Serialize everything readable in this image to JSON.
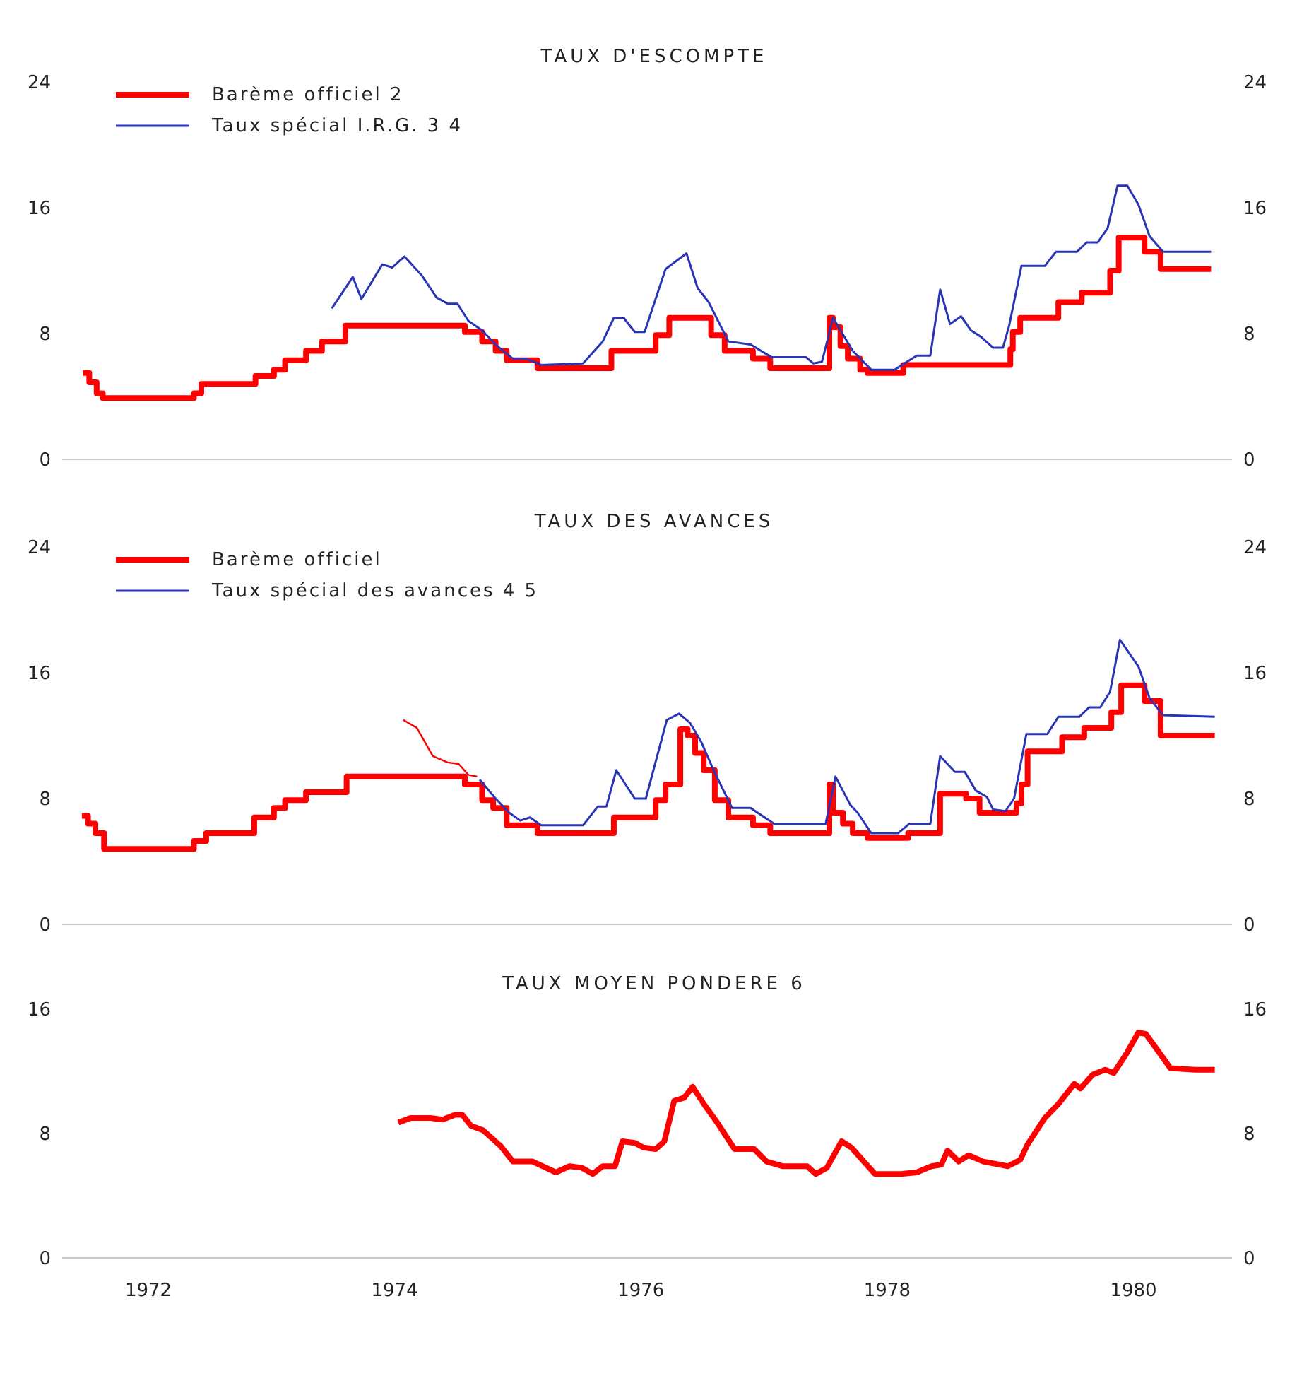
{
  "chart_data": [
    {
      "type": "step",
      "title": "TAUX D'ESCOMPTE",
      "xlim": [
        1971.3,
        1980.8
      ],
      "xticks": [
        1972,
        1974,
        1976,
        1978,
        1980
      ],
      "ylim": [
        0,
        24
      ],
      "yticks": [
        0,
        8,
        16,
        24
      ],
      "y2lim": [
        0,
        24
      ],
      "y2ticks": [
        0,
        8,
        16,
        24
      ],
      "tick_labels": "y",
      "legend": "top left",
      "series": [
        {
          "name": "Barème officiel 2",
          "color": "#ff0000",
          "x": [
            1971.47,
            1971.52,
            1971.58,
            1971.63,
            1972.37,
            1972.43,
            1972.87,
            1973.02,
            1973.11,
            1973.28,
            1973.41,
            1973.6,
            1974.57,
            1974.71,
            1974.82,
            1974.91,
            1975.16,
            1975.76,
            1976.12,
            1976.23,
            1976.57,
            1976.68,
            1976.91,
            1977.05,
            1977.53,
            1977.56,
            1977.62,
            1977.68,
            1977.78,
            1977.84,
            1978.13,
            1979.0,
            1979.02,
            1979.08,
            1979.39,
            1979.58,
            1979.81,
            1979.88,
            1980.09,
            1980.22,
            1980.63
          ],
          "values": [
            5.5,
            4.9,
            4.2,
            3.9,
            4.2,
            4.8,
            5.3,
            5.7,
            6.3,
            6.9,
            7.5,
            8.5,
            8.1,
            7.5,
            6.9,
            6.3,
            5.8,
            6.9,
            7.9,
            9.0,
            7.9,
            6.9,
            6.4,
            5.8,
            9.0,
            8.4,
            7.2,
            6.4,
            5.7,
            5.5,
            6.0,
            7.0,
            8.1,
            9.0,
            10.0,
            10.6,
            12.0,
            14.1,
            13.2,
            12.1,
            12.1
          ]
        },
        {
          "name": "Taux spécial I.R.G. 3 4",
          "type": "line",
          "color": "#2a35b5",
          "x": [
            1973.49,
            1973.66,
            1973.73,
            1973.9,
            1973.98,
            1974.08,
            1974.22,
            1974.34,
            1974.43,
            1974.51,
            1974.6,
            1974.71,
            1974.82,
            1974.96,
            1975.07,
            1975.19,
            1975.53,
            1975.69,
            1975.78,
            1975.86,
            1975.95,
            1976.03,
            1976.2,
            1976.37,
            1976.46,
            1976.55,
            1976.71,
            1976.89,
            1977.06,
            1977.34,
            1977.4,
            1977.47,
            1977.56,
            1977.72,
            1977.87,
            1978.06,
            1978.24,
            1978.35,
            1978.43,
            1978.51,
            1978.6,
            1978.68,
            1978.76,
            1978.86,
            1978.94,
            1978.99,
            1979.09,
            1979.28,
            1979.37,
            1979.54,
            1979.62,
            1979.71,
            1979.79,
            1979.87,
            1979.95,
            1980.04,
            1980.13,
            1980.24,
            1980.63
          ],
          "values": [
            9.6,
            11.6,
            10.2,
            12.4,
            12.2,
            12.9,
            11.7,
            10.3,
            9.9,
            9.9,
            8.8,
            8.2,
            7.3,
            6.4,
            6.4,
            6.0,
            6.1,
            7.5,
            9.0,
            9.0,
            8.1,
            8.1,
            12.1,
            13.1,
            10.9,
            10.0,
            7.5,
            7.3,
            6.5,
            6.5,
            6.1,
            6.2,
            9.0,
            6.9,
            5.7,
            5.7,
            6.6,
            6.6,
            10.8,
            8.6,
            9.1,
            8.2,
            7.8,
            7.1,
            7.1,
            8.5,
            12.3,
            12.3,
            13.2,
            13.2,
            13.8,
            13.8,
            14.7,
            17.4,
            17.4,
            16.2,
            14.2,
            13.2,
            13.2
          ]
        }
      ]
    },
    {
      "type": "step",
      "title": "TAUX DES AVANCES",
      "xlim": [
        1971.3,
        1980.8
      ],
      "xticks": [
        1972,
        1974,
        1976,
        1978,
        1980
      ],
      "ylim": [
        0,
        24
      ],
      "yticks": [
        0,
        8,
        16,
        24
      ],
      "y2lim": [
        0,
        24
      ],
      "y2ticks": [
        0,
        8,
        16,
        24
      ],
      "tick_labels": "y",
      "legend": "top left",
      "series": [
        {
          "name": "Barème officiel",
          "color": "#ff0000",
          "x": [
            1971.46,
            1971.51,
            1971.57,
            1971.64,
            1972.37,
            1972.47,
            1972.86,
            1973.02,
            1973.11,
            1973.28,
            1973.61,
            1974.57,
            1974.71,
            1974.8,
            1974.91,
            1975.16,
            1975.78,
            1976.12,
            1976.2,
            1976.32,
            1976.38,
            1976.44,
            1976.51,
            1976.6,
            1976.71,
            1976.91,
            1977.05,
            1977.53,
            1977.56,
            1977.64,
            1977.72,
            1977.84,
            1978.17,
            1978.43,
            1978.64,
            1978.75,
            1979.05,
            1979.09,
            1979.14,
            1979.42,
            1979.6,
            1979.82,
            1979.9,
            1980.09,
            1980.22,
            1980.66
          ],
          "values": [
            6.9,
            6.4,
            5.8,
            4.8,
            5.3,
            5.8,
            6.8,
            7.4,
            7.9,
            8.4,
            9.4,
            8.9,
            7.9,
            7.4,
            6.3,
            5.8,
            6.8,
            7.9,
            8.9,
            12.4,
            12.0,
            10.9,
            9.8,
            7.9,
            6.8,
            6.3,
            5.8,
            8.9,
            7.1,
            6.4,
            5.8,
            5.5,
            5.8,
            8.3,
            8.0,
            7.1,
            7.7,
            8.9,
            11.0,
            11.9,
            12.5,
            13.5,
            15.2,
            14.2,
            12.0,
            12.0
          ]
        },
        {
          "type": "line",
          "color": "#ff0000",
          "x": [
            1974.07,
            1974.18,
            1974.31,
            1974.43,
            1974.52,
            1974.6,
            1974.67
          ],
          "values": [
            13.0,
            12.5,
            10.7,
            10.3,
            10.2,
            9.5,
            9.4
          ]
        },
        {
          "name": "Taux spécial des avances 4 5",
          "type": "line",
          "color": "#2a35b5",
          "x": [
            1974.69,
            1974.82,
            1974.93,
            1975.02,
            1975.1,
            1975.19,
            1975.53,
            1975.65,
            1975.72,
            1975.8,
            1975.95,
            1976.04,
            1976.21,
            1976.31,
            1976.4,
            1976.49,
            1976.59,
            1976.74,
            1976.89,
            1977.08,
            1977.5,
            1977.58,
            1977.7,
            1977.76,
            1977.87,
            1978.09,
            1978.18,
            1978.35,
            1978.43,
            1978.55,
            1978.63,
            1978.72,
            1978.81,
            1978.86,
            1978.96,
            1979.03,
            1979.13,
            1979.3,
            1979.39,
            1979.56,
            1979.64,
            1979.73,
            1979.81,
            1979.89,
            1980.04,
            1980.13,
            1980.24,
            1980.66
          ],
          "values": [
            9.2,
            8.0,
            7.1,
            6.6,
            6.8,
            6.3,
            6.3,
            7.5,
            7.5,
            9.8,
            8.0,
            8.0,
            13.0,
            13.4,
            12.8,
            11.6,
            9.8,
            7.4,
            7.4,
            6.4,
            6.4,
            9.4,
            7.6,
            7.1,
            5.8,
            5.8,
            6.4,
            6.4,
            10.7,
            9.7,
            9.7,
            8.5,
            8.1,
            7.3,
            7.2,
            8.0,
            12.1,
            12.1,
            13.2,
            13.2,
            13.8,
            13.8,
            14.8,
            18.1,
            16.4,
            14.4,
            13.3,
            13.2
          ]
        }
      ]
    },
    {
      "type": "line",
      "title": "TAUX MOYEN PONDERE 6",
      "xlim": [
        1971.3,
        1980.8
      ],
      "xticks": [
        1972,
        1974,
        1976,
        1978,
        1980
      ],
      "ylim": [
        0,
        16
      ],
      "yticks": [
        0,
        8,
        16
      ],
      "y2lim": [
        0,
        16
      ],
      "y2ticks": [
        0,
        8,
        16
      ],
      "series": [
        {
          "color": "#ff0000",
          "x": [
            1974.03,
            1974.13,
            1974.29,
            1974.39,
            1974.49,
            1974.55,
            1974.62,
            1974.72,
            1974.86,
            1974.96,
            1975.12,
            1975.31,
            1975.42,
            1975.52,
            1975.61,
            1975.69,
            1975.79,
            1975.85,
            1975.95,
            1976.02,
            1976.12,
            1976.19,
            1976.27,
            1976.35,
            1976.42,
            1976.52,
            1976.62,
            1976.76,
            1976.92,
            1977.02,
            1977.15,
            1977.35,
            1977.42,
            1977.51,
            1977.63,
            1977.71,
            1977.81,
            1977.9,
            1978.11,
            1978.24,
            1978.36,
            1978.44,
            1978.49,
            1978.58,
            1978.66,
            1978.78,
            1978.98,
            1979.08,
            1979.14,
            1979.28,
            1979.39,
            1979.52,
            1979.57,
            1979.67,
            1979.77,
            1979.84,
            1979.94,
            1980.04,
            1980.1,
            1980.21,
            1980.3,
            1980.5,
            1980.66
          ],
          "values": [
            8.7,
            9.0,
            9.0,
            8.9,
            9.2,
            9.2,
            8.5,
            8.2,
            7.2,
            6.2,
            6.2,
            5.5,
            5.9,
            5.8,
            5.4,
            5.9,
            5.9,
            7.5,
            7.4,
            7.1,
            7.0,
            7.5,
            10.1,
            10.3,
            11.0,
            9.8,
            8.7,
            7.0,
            7.0,
            6.2,
            5.9,
            5.9,
            5.4,
            5.8,
            7.5,
            7.1,
            6.2,
            5.4,
            5.4,
            5.5,
            5.9,
            6.0,
            6.9,
            6.2,
            6.6,
            6.2,
            5.9,
            6.3,
            7.3,
            9.0,
            9.9,
            11.2,
            10.9,
            11.8,
            12.1,
            11.9,
            13.1,
            14.5,
            14.4,
            13.2,
            12.2,
            12.1,
            12.1
          ]
        }
      ]
    }
  ]
}
